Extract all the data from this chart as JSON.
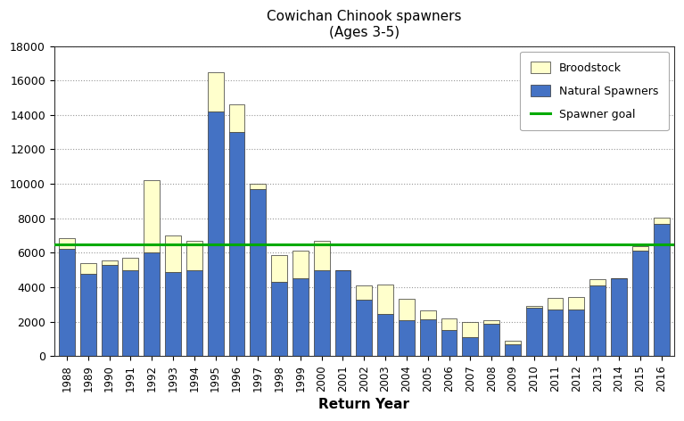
{
  "years": [
    1988,
    1989,
    1990,
    1991,
    1992,
    1993,
    1994,
    1995,
    1996,
    1997,
    1998,
    1999,
    2000,
    2001,
    2002,
    2003,
    2004,
    2005,
    2006,
    2007,
    2008,
    2009,
    2010,
    2011,
    2012,
    2013,
    2014,
    2015,
    2016
  ],
  "natural_spawners": [
    6200,
    4800,
    5300,
    5000,
    6000,
    4900,
    5000,
    14200,
    13000,
    9700,
    4300,
    4500,
    5000,
    5000,
    3250,
    2450,
    2100,
    2150,
    1500,
    1100,
    1900,
    700,
    2800,
    2700,
    2700,
    4100,
    4500,
    6100,
    7700
  ],
  "broodstock": [
    650,
    600,
    250,
    700,
    4200,
    2100,
    1700,
    2300,
    1600,
    300,
    1550,
    1600,
    1700,
    0,
    850,
    1700,
    1200,
    500,
    700,
    900,
    200,
    200,
    100,
    700,
    750,
    350,
    0,
    300,
    350
  ],
  "spawner_goal": 6500,
  "bar_color_natural": "#4472C4",
  "bar_color_broodstock": "#FFFFCC",
  "bar_edge_color": "#333333",
  "line_color": "#00AA00",
  "title_line1": "Cowichan Chinook spawners",
  "title_line2": "(Ages 3-5)",
  "xlabel": "Return Year",
  "ylim": [
    0,
    18000
  ],
  "yticks": [
    0,
    2000,
    4000,
    6000,
    8000,
    10000,
    12000,
    14000,
    16000,
    18000
  ],
  "legend_labels": [
    "Broodstock",
    "Natural Spawners",
    "Spawner goal"
  ],
  "background_color": "#ffffff",
  "grid_color": "#999999"
}
